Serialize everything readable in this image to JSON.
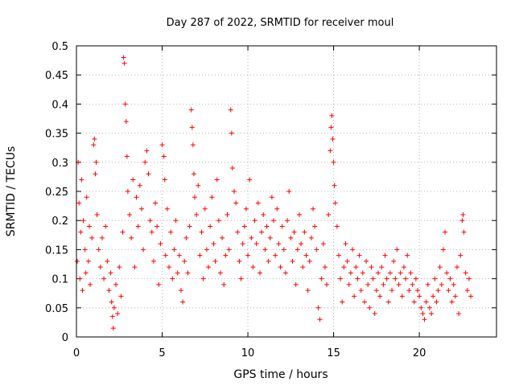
{
  "chart_data": {
    "type": "scatter",
    "title": "Day 287 of 2022, SRMTID for receiver moul",
    "xlabel": "GPS time / hours",
    "ylabel": "SRMTID / TECUs",
    "xlim": [
      0,
      24.5
    ],
    "ylim": [
      0,
      0.5
    ],
    "xticks": [
      0,
      5,
      10,
      15,
      20
    ],
    "xtick_labels": [
      "0",
      "5",
      "10",
      "15",
      "20"
    ],
    "yticks": [
      0,
      0.05,
      0.1,
      0.15,
      0.2,
      0.25,
      0.3,
      0.35,
      0.4,
      0.45,
      0.5
    ],
    "ytick_labels": [
      "0",
      "0.05",
      "0.1",
      "0.15",
      "0.2",
      "0.25",
      "0.3",
      "0.35",
      "0.4",
      "0.45",
      "0.5"
    ],
    "grid": true,
    "marker": "+",
    "series": [
      {
        "name": "SRMTID",
        "color": "#ff0000",
        "points": [
          [
            0.05,
            0.13
          ],
          [
            0.1,
            0.3
          ],
          [
            0.15,
            0.23
          ],
          [
            0.2,
            0.1
          ],
          [
            0.25,
            0.18
          ],
          [
            0.3,
            0.27
          ],
          [
            0.35,
            0.08
          ],
          [
            0.4,
            0.2
          ],
          [
            0.5,
            0.15
          ],
          [
            0.55,
            0.11
          ],
          [
            0.6,
            0.24
          ],
          [
            0.7,
            0.13
          ],
          [
            0.75,
            0.19
          ],
          [
            0.8,
            0.09
          ],
          [
            0.9,
            0.17
          ],
          [
            1.0,
            0.33
          ],
          [
            1.05,
            0.34
          ],
          [
            1.1,
            0.28
          ],
          [
            1.15,
            0.3
          ],
          [
            1.2,
            0.21
          ],
          [
            1.3,
            0.15
          ],
          [
            1.4,
            0.12
          ],
          [
            1.5,
            0.17
          ],
          [
            1.6,
            0.1
          ],
          [
            1.7,
            0.19
          ],
          [
            1.8,
            0.13
          ],
          [
            1.9,
            0.08
          ],
          [
            2.0,
            0.11
          ],
          [
            2.05,
            0.06
          ],
          [
            2.1,
            0.035
          ],
          [
            2.15,
            0.015
          ],
          [
            2.2,
            0.05
          ],
          [
            2.3,
            0.09
          ],
          [
            2.4,
            0.04
          ],
          [
            2.5,
            0.12
          ],
          [
            2.6,
            0.07
          ],
          [
            2.7,
            0.18
          ],
          [
            2.75,
            0.48
          ],
          [
            2.8,
            0.47
          ],
          [
            2.85,
            0.4
          ],
          [
            2.9,
            0.37
          ],
          [
            2.95,
            0.31
          ],
          [
            3.0,
            0.25
          ],
          [
            3.1,
            0.21
          ],
          [
            3.2,
            0.17
          ],
          [
            3.3,
            0.27
          ],
          [
            3.4,
            0.12
          ],
          [
            3.5,
            0.24
          ],
          [
            3.6,
            0.19
          ],
          [
            3.7,
            0.26
          ],
          [
            3.8,
            0.22
          ],
          [
            3.9,
            0.15
          ],
          [
            4.0,
            0.3
          ],
          [
            4.1,
            0.32
          ],
          [
            4.2,
            0.28
          ],
          [
            4.3,
            0.2
          ],
          [
            4.4,
            0.18
          ],
          [
            4.5,
            0.13
          ],
          [
            4.6,
            0.23
          ],
          [
            4.7,
            0.19
          ],
          [
            4.8,
            0.09
          ],
          [
            4.9,
            0.16
          ],
          [
            5.0,
            0.33
          ],
          [
            5.1,
            0.31
          ],
          [
            5.15,
            0.27
          ],
          [
            5.2,
            0.14
          ],
          [
            5.3,
            0.22
          ],
          [
            5.4,
            0.12
          ],
          [
            5.5,
            0.18
          ],
          [
            5.6,
            0.1
          ],
          [
            5.7,
            0.15
          ],
          [
            5.8,
            0.2
          ],
          [
            5.9,
            0.11
          ],
          [
            6.0,
            0.14
          ],
          [
            6.1,
            0.08
          ],
          [
            6.2,
            0.06
          ],
          [
            6.3,
            0.13
          ],
          [
            6.4,
            0.17
          ],
          [
            6.5,
            0.11
          ],
          [
            6.6,
            0.19
          ],
          [
            6.7,
            0.39
          ],
          [
            6.75,
            0.36
          ],
          [
            6.8,
            0.33
          ],
          [
            6.85,
            0.28
          ],
          [
            6.9,
            0.24
          ],
          [
            7.0,
            0.21
          ],
          [
            7.1,
            0.26
          ],
          [
            7.2,
            0.14
          ],
          [
            7.3,
            0.18
          ],
          [
            7.4,
            0.1
          ],
          [
            7.5,
            0.22
          ],
          [
            7.6,
            0.15
          ],
          [
            7.7,
            0.12
          ],
          [
            7.8,
            0.19
          ],
          [
            7.9,
            0.24
          ],
          [
            8.0,
            0.16
          ],
          [
            8.1,
            0.13
          ],
          [
            8.2,
            0.27
          ],
          [
            8.3,
            0.2
          ],
          [
            8.4,
            0.11
          ],
          [
            8.5,
            0.17
          ],
          [
            8.6,
            0.09
          ],
          [
            8.7,
            0.14
          ],
          [
            8.8,
            0.21
          ],
          [
            8.9,
            0.15
          ],
          [
            9.0,
            0.39
          ],
          [
            9.05,
            0.35
          ],
          [
            9.1,
            0.29
          ],
          [
            9.2,
            0.25
          ],
          [
            9.3,
            0.23
          ],
          [
            9.4,
            0.18
          ],
          [
            9.5,
            0.13
          ],
          [
            9.6,
            0.1
          ],
          [
            9.7,
            0.16
          ],
          [
            9.8,
            0.19
          ],
          [
            9.9,
            0.22
          ],
          [
            10.0,
            0.14
          ],
          [
            10.1,
            0.27
          ],
          [
            10.2,
            0.17
          ],
          [
            10.3,
            0.12
          ],
          [
            10.4,
            0.2
          ],
          [
            10.5,
            0.16
          ],
          [
            10.6,
            0.23
          ],
          [
            10.7,
            0.11
          ],
          [
            10.8,
            0.18
          ],
          [
            10.9,
            0.21
          ],
          [
            11.0,
            0.15
          ],
          [
            11.1,
            0.19
          ],
          [
            11.2,
            0.13
          ],
          [
            11.3,
            0.17
          ],
          [
            11.4,
            0.24
          ],
          [
            11.5,
            0.2
          ],
          [
            11.6,
            0.14
          ],
          [
            11.7,
            0.22
          ],
          [
            11.8,
            0.16
          ],
          [
            11.9,
            0.12
          ],
          [
            12.0,
            0.19
          ],
          [
            12.1,
            0.15
          ],
          [
            12.2,
            0.11
          ],
          [
            12.3,
            0.2
          ],
          [
            12.4,
            0.25
          ],
          [
            12.5,
            0.17
          ],
          [
            12.6,
            0.13
          ],
          [
            12.7,
            0.18
          ],
          [
            12.8,
            0.09
          ],
          [
            12.9,
            0.15
          ],
          [
            13.0,
            0.21
          ],
          [
            13.1,
            0.16
          ],
          [
            13.2,
            0.12
          ],
          [
            13.3,
            0.18
          ],
          [
            13.4,
            0.14
          ],
          [
            13.5,
            0.08
          ],
          [
            13.6,
            0.13
          ],
          [
            13.7,
            0.17
          ],
          [
            13.8,
            0.22
          ],
          [
            13.9,
            0.19
          ],
          [
            14.0,
            0.15
          ],
          [
            14.1,
            0.05
          ],
          [
            14.2,
            0.03
          ],
          [
            14.3,
            0.1
          ],
          [
            14.4,
            0.16
          ],
          [
            14.5,
            0.12
          ],
          [
            14.6,
            0.09
          ],
          [
            14.7,
            0.21
          ],
          [
            14.8,
            0.32
          ],
          [
            14.85,
            0.36
          ],
          [
            14.9,
            0.38
          ],
          [
            14.95,
            0.34
          ],
          [
            15.0,
            0.3
          ],
          [
            15.05,
            0.26
          ],
          [
            15.1,
            0.23
          ],
          [
            15.2,
            0.19
          ],
          [
            15.3,
            0.14
          ],
          [
            15.4,
            0.1
          ],
          [
            15.5,
            0.06
          ],
          [
            15.6,
            0.12
          ],
          [
            15.7,
            0.16
          ],
          [
            15.8,
            0.13
          ],
          [
            15.9,
            0.09
          ],
          [
            16.0,
            0.11
          ],
          [
            16.1,
            0.15
          ],
          [
            16.2,
            0.07
          ],
          [
            16.3,
            0.12
          ],
          [
            16.4,
            0.1
          ],
          [
            16.5,
            0.14
          ],
          [
            16.6,
            0.08
          ],
          [
            16.7,
            0.11
          ],
          [
            16.8,
            0.06
          ],
          [
            16.9,
            0.13
          ],
          [
            17.0,
            0.09
          ],
          [
            17.1,
            0.05
          ],
          [
            17.2,
            0.12
          ],
          [
            17.3,
            0.1
          ],
          [
            17.4,
            0.04
          ],
          [
            17.5,
            0.08
          ],
          [
            17.6,
            0.11
          ],
          [
            17.7,
            0.07
          ],
          [
            17.8,
            0.12
          ],
          [
            17.9,
            0.09
          ],
          [
            18.0,
            0.14
          ],
          [
            18.1,
            0.1
          ],
          [
            18.2,
            0.06
          ],
          [
            18.3,
            0.11
          ],
          [
            18.4,
            0.08
          ],
          [
            18.5,
            0.13
          ],
          [
            18.6,
            0.1
          ],
          [
            18.7,
            0.15
          ],
          [
            18.8,
            0.09
          ],
          [
            18.9,
            0.11
          ],
          [
            19.0,
            0.07
          ],
          [
            19.1,
            0.12
          ],
          [
            19.2,
            0.1
          ],
          [
            19.3,
            0.14
          ],
          [
            19.4,
            0.08
          ],
          [
            19.5,
            0.11
          ],
          [
            19.6,
            0.09
          ],
          [
            19.7,
            0.06
          ],
          [
            19.8,
            0.1
          ],
          [
            19.9,
            0.08
          ],
          [
            20.0,
            0.07
          ],
          [
            20.1,
            0.05
          ],
          [
            20.2,
            0.04
          ],
          [
            20.3,
            0.03
          ],
          [
            20.4,
            0.06
          ],
          [
            20.5,
            0.09
          ],
          [
            20.6,
            0.05
          ],
          [
            20.7,
            0.04
          ],
          [
            20.8,
            0.07
          ],
          [
            20.9,
            0.1
          ],
          [
            21.0,
            0.06
          ],
          [
            21.1,
            0.08
          ],
          [
            21.2,
            0.12
          ],
          [
            21.3,
            0.09
          ],
          [
            21.4,
            0.15
          ],
          [
            21.5,
            0.18
          ],
          [
            21.6,
            0.11
          ],
          [
            21.7,
            0.08
          ],
          [
            21.8,
            0.1
          ],
          [
            21.9,
            0.06
          ],
          [
            22.0,
            0.09
          ],
          [
            22.1,
            0.07
          ],
          [
            22.2,
            0.12
          ],
          [
            22.3,
            0.04
          ],
          [
            22.4,
            0.14
          ],
          [
            22.5,
            0.2
          ],
          [
            22.55,
            0.21
          ],
          [
            22.6,
            0.18
          ],
          [
            22.7,
            0.11
          ],
          [
            22.8,
            0.08
          ],
          [
            22.9,
            0.1
          ],
          [
            23.0,
            0.07
          ]
        ]
      }
    ]
  }
}
